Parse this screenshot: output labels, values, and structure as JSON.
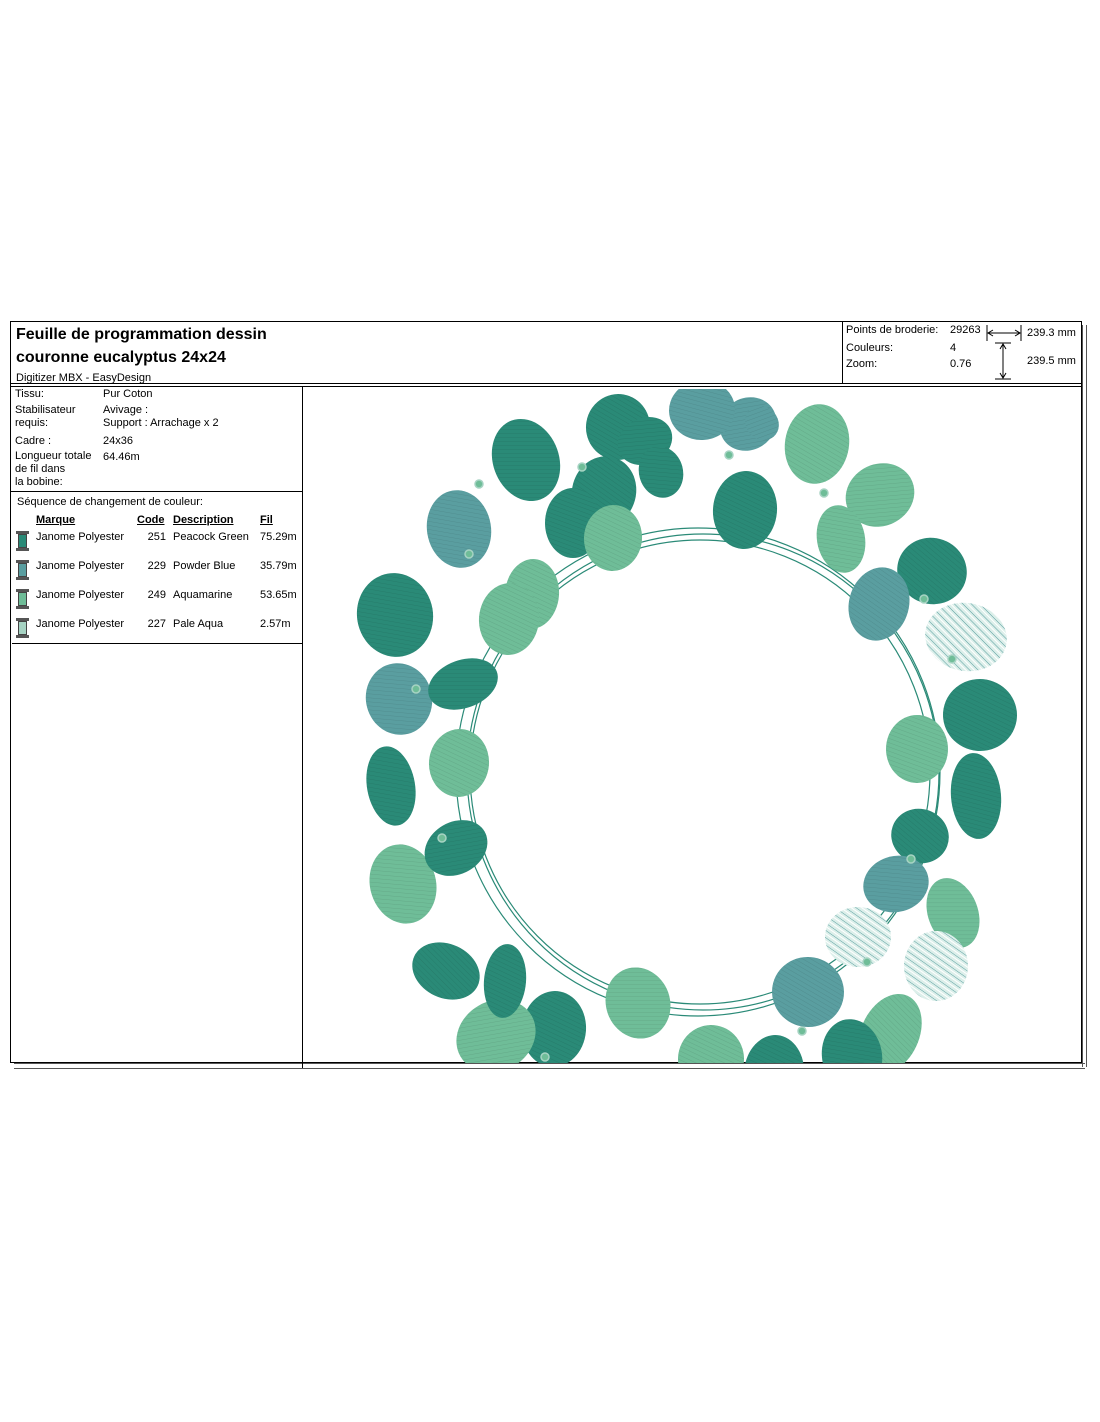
{
  "header": {
    "title_line1": "Feuille de programmation dessin",
    "title_line2": "couronne eucalyptus 24x24",
    "software": "Digitizer MBX - EasyDesign"
  },
  "stats": {
    "points_label": "Points de broderie:",
    "points_value": "29263",
    "colors_label": "Couleurs:",
    "colors_value": "4",
    "zoom_label": "Zoom:",
    "zoom_value": "0.76",
    "width": "239.3 mm",
    "height": "239.5 mm"
  },
  "info": {
    "tissu_label": "Tissu:",
    "tissu_value": "Pur Coton",
    "stab_label_1": "Stabilisateur",
    "stab_label_2": "requis:",
    "stab_value_1": "Avivage :",
    "stab_value_2": "Support : Arrachage x 2",
    "cadre_label": "Cadre :",
    "cadre_value": "24x36",
    "longueur_label_1": "Longueur totale",
    "longueur_label_2": "de fil dans",
    "longueur_label_3": "la bobine:",
    "longueur_value": "64.46m"
  },
  "sequence": {
    "title": "Séquence de changement de couleur:",
    "headers": {
      "marque": "Marque",
      "code": "Code",
      "description": "Description",
      "fil": "Fil"
    },
    "rows": [
      {
        "marque": "Janome Polyester",
        "code": "251",
        "description": "Peacock Green",
        "fil": "75.29m",
        "color": "#2a8a77"
      },
      {
        "marque": "Janome Polyester",
        "code": "229",
        "description": "Powder Blue",
        "fil": "35.79m",
        "color": "#5a9ea0"
      },
      {
        "marque": "Janome Polyester",
        "code": "249",
        "description": "Aquamarine",
        "fil": "53.65m",
        "color": "#6fbd98"
      },
      {
        "marque": "Janome Polyester",
        "code": "227",
        "description": "Pale Aqua",
        "fil": "2.57m",
        "color": "#a6d3c3"
      }
    ]
  },
  "design": {
    "subject": "eucalyptus wreath"
  }
}
